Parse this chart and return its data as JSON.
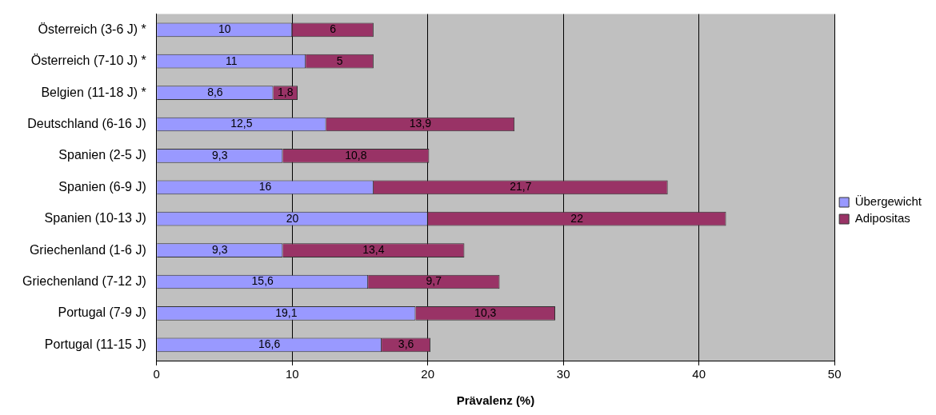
{
  "chart_data": {
    "type": "bar",
    "orientation": "horizontal",
    "stacked": true,
    "xlabel": "Prävalenz (%)",
    "categories": [
      "Österreich (3-6 J) *",
      "Österreich (7-10 J) *",
      "Belgien (11-18 J) *",
      "Deutschland (6-16 J)",
      "Spanien (2-5 J)",
      "Spanien (6-9 J)",
      "Spanien (10-13 J)",
      "Griechenland (1-6 J)",
      "Griechenland (7-12 J)",
      "Portugal (7-9 J)",
      "Portugal (11-15 J)"
    ],
    "series": [
      {
        "name": "Übergewicht",
        "color": "#9999ff",
        "values": [
          10,
          11,
          8.6,
          12.5,
          9.3,
          16,
          20,
          9.3,
          15.6,
          19.1,
          16.6
        ],
        "value_labels": [
          "10",
          "11",
          "8,6",
          "12,5",
          "9,3",
          "16",
          "20",
          "9,3",
          "15,6",
          "19,1",
          "16,6"
        ]
      },
      {
        "name": "Adipositas",
        "color": "#993366",
        "values": [
          6,
          5,
          1.8,
          13.9,
          10.8,
          21.7,
          22,
          13.4,
          9.7,
          10.3,
          3.6
        ],
        "value_labels": [
          "6",
          "5",
          "1,8",
          "13,9",
          "10,8",
          "21,7",
          "22",
          "13,4",
          "9,7",
          "10,3",
          "3,6"
        ]
      }
    ],
    "xlim": [
      0,
      50
    ],
    "xticks": [
      0,
      10,
      20,
      30,
      40,
      50
    ],
    "grid": "x",
    "legend": "right"
  }
}
